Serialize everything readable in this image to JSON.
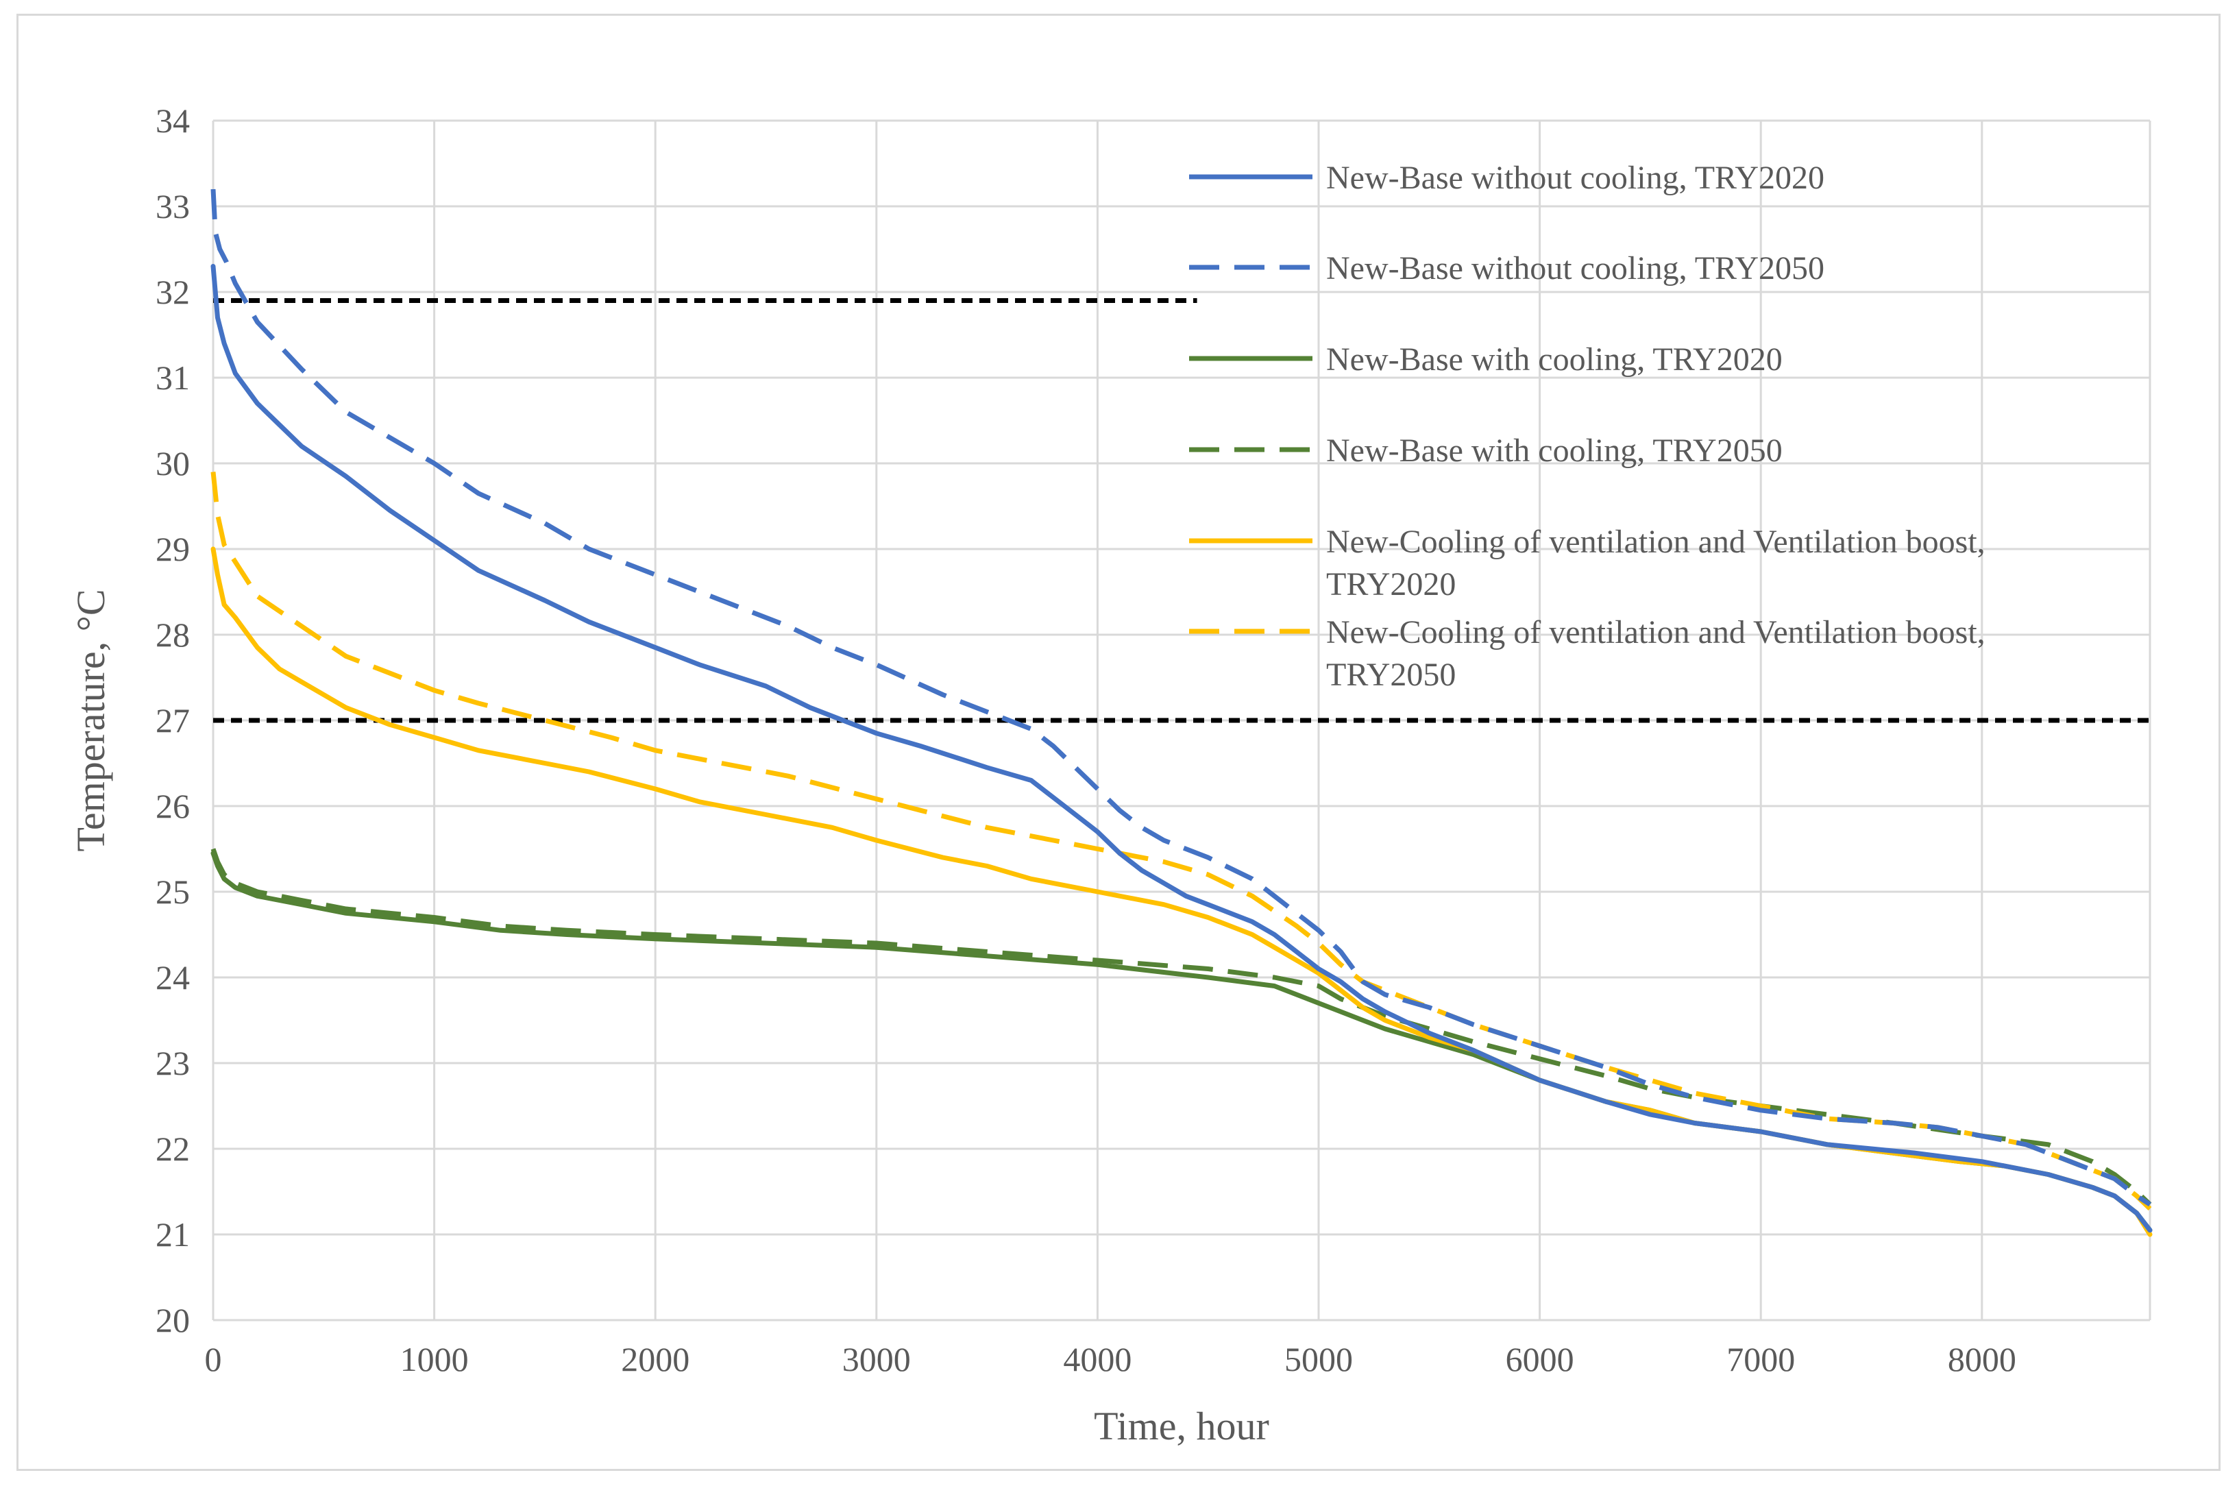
{
  "chart_data": {
    "type": "line",
    "title": "",
    "xlabel": "Time, hour",
    "ylabel": "Temperature, °C",
    "xlim": [
      0,
      8760
    ],
    "ylim": [
      20,
      34
    ],
    "xticks": [
      0,
      1000,
      2000,
      3000,
      4000,
      5000,
      6000,
      7000,
      8000
    ],
    "yticks": [
      20,
      21,
      22,
      23,
      24,
      25,
      26,
      27,
      28,
      29,
      30,
      31,
      32,
      33,
      34
    ],
    "grid": true,
    "legend_position": "top-right",
    "reference_lines": [
      {
        "name": "threshold-32",
        "y": 31.9,
        "x_start": 0,
        "x_end": 4450,
        "style": "dashed",
        "color": "#000000"
      },
      {
        "name": "threshold-27",
        "y": 27.0,
        "x_start": 0,
        "x_end": 8760,
        "style": "dashed",
        "color": "#000000"
      }
    ],
    "series": [
      {
        "name": "New-Base without cooling, TRY2020",
        "legend_lines": [
          "New-Base without cooling, TRY2020"
        ],
        "color": "#4472C4",
        "dash": "solid",
        "x": [
          0,
          20,
          50,
          100,
          200,
          300,
          400,
          600,
          800,
          1000,
          1200,
          1500,
          1700,
          2000,
          2200,
          2500,
          2700,
          2900,
          3000,
          3200,
          3500,
          3700,
          3800,
          3900,
          4000,
          4100,
          4200,
          4300,
          4400,
          4500,
          4700,
          4800,
          4900,
          5000,
          5100,
          5200,
          5300,
          5500,
          5700,
          6000,
          6300,
          6500,
          6700,
          7000,
          7300,
          7500,
          7700,
          8000,
          8300,
          8500,
          8600,
          8700,
          8760
        ],
        "y": [
          32.3,
          31.7,
          31.4,
          31.05,
          30.7,
          30.45,
          30.2,
          29.85,
          29.45,
          29.1,
          28.75,
          28.4,
          28.15,
          27.85,
          27.65,
          27.4,
          27.15,
          26.95,
          26.85,
          26.7,
          26.45,
          26.3,
          26.1,
          25.9,
          25.7,
          25.45,
          25.25,
          25.1,
          24.95,
          24.85,
          24.65,
          24.5,
          24.3,
          24.1,
          23.95,
          23.75,
          23.6,
          23.35,
          23.15,
          22.8,
          22.55,
          22.4,
          22.3,
          22.2,
          22.05,
          22.0,
          21.95,
          21.85,
          21.7,
          21.55,
          21.45,
          21.25,
          21.05
        ]
      },
      {
        "name": "New-Base without cooling, TRY2050",
        "legend_lines": [
          "New-Base without cooling, TRY2050"
        ],
        "color": "#4472C4",
        "dash": "dashed",
        "x": [
          0,
          10,
          30,
          60,
          100,
          200,
          400,
          600,
          800,
          1000,
          1200,
          1500,
          1700,
          2000,
          2300,
          2600,
          2800,
          3000,
          3300,
          3500,
          3700,
          3800,
          3900,
          4000,
          4100,
          4200,
          4300,
          4500,
          4700,
          4800,
          5000,
          5100,
          5200,
          5300,
          5500,
          5700,
          6000,
          6300,
          6500,
          6700,
          7000,
          7300,
          7600,
          7800,
          8000,
          8200,
          8400,
          8600,
          8700,
          8760
        ],
        "y": [
          33.2,
          32.7,
          32.5,
          32.35,
          32.1,
          31.65,
          31.1,
          30.6,
          30.3,
          30.0,
          29.65,
          29.3,
          29.0,
          28.7,
          28.4,
          28.1,
          27.85,
          27.65,
          27.3,
          27.1,
          26.9,
          26.7,
          26.45,
          26.2,
          25.95,
          25.75,
          25.6,
          25.4,
          25.15,
          24.95,
          24.55,
          24.3,
          23.95,
          23.8,
          23.65,
          23.45,
          23.2,
          22.95,
          22.75,
          22.6,
          22.45,
          22.35,
          22.3,
          22.25,
          22.15,
          22.05,
          21.85,
          21.65,
          21.45,
          21.35
        ]
      },
      {
        "name": "New-Base with cooling, TRY2020",
        "legend_lines": [
          "New-Base with cooling, TRY2020"
        ],
        "color": "#548235",
        "dash": "solid",
        "x": [
          0,
          20,
          50,
          100,
          200,
          400,
          600,
          800,
          1000,
          1300,
          1600,
          2000,
          2500,
          3000,
          3500,
          4000,
          4500,
          4800,
          4900,
          5000,
          5100,
          5200,
          5300,
          5500,
          5700,
          6000,
          6300,
          6500,
          6700,
          7000,
          7300,
          7600,
          7900,
          8100,
          8300,
          8500,
          8600,
          8700,
          8760
        ],
        "y": [
          25.45,
          25.3,
          25.15,
          25.05,
          24.95,
          24.85,
          24.75,
          24.7,
          24.65,
          24.55,
          24.5,
          24.45,
          24.4,
          24.35,
          24.25,
          24.15,
          24.0,
          23.9,
          23.8,
          23.7,
          23.6,
          23.5,
          23.4,
          23.25,
          23.1,
          22.8,
          22.55,
          22.45,
          22.3,
          22.2,
          22.05,
          21.95,
          21.85,
          21.8,
          21.7,
          21.55,
          21.45,
          21.25,
          21.05
        ]
      },
      {
        "name": "New-Base with cooling, TRY2050",
        "legend_lines": [
          "New-Base with cooling, TRY2050"
        ],
        "color": "#548235",
        "dash": "dashed",
        "x": [
          0,
          20,
          50,
          100,
          200,
          400,
          600,
          800,
          1000,
          1300,
          1600,
          2000,
          2500,
          3000,
          3500,
          4000,
          4500,
          4800,
          5000,
          5100,
          5200,
          5300,
          5500,
          5700,
          6000,
          6300,
          6500,
          6700,
          7000,
          7300,
          7600,
          8000,
          8300,
          8500,
          8600,
          8700,
          8760
        ],
        "y": [
          25.5,
          25.35,
          25.2,
          25.1,
          25.0,
          24.9,
          24.8,
          24.75,
          24.7,
          24.6,
          24.55,
          24.5,
          24.45,
          24.4,
          24.3,
          24.2,
          24.1,
          24.0,
          23.9,
          23.75,
          23.65,
          23.55,
          23.4,
          23.25,
          23.05,
          22.85,
          22.7,
          22.6,
          22.5,
          22.4,
          22.3,
          22.15,
          22.05,
          21.85,
          21.7,
          21.5,
          21.35
        ]
      },
      {
        "name": "New-Cooling of ventilation and Ventilation boost, TRY2020",
        "legend_lines": [
          "New-Cooling of ventilation and Ventilation boost,",
          "TRY2020"
        ],
        "color": "#FFC000",
        "dash": "solid",
        "x": [
          0,
          20,
          50,
          100,
          200,
          300,
          400,
          600,
          800,
          1000,
          1200,
          1500,
          1700,
          2000,
          2200,
          2500,
          2800,
          3000,
          3300,
          3500,
          3700,
          4000,
          4300,
          4500,
          4700,
          4800,
          4900,
          5000,
          5100,
          5200,
          5300,
          5500,
          5700,
          6000,
          6300,
          6500,
          6700,
          7000,
          7300,
          7600,
          7900,
          8100,
          8300,
          8500,
          8600,
          8700,
          8760
        ],
        "y": [
          29.0,
          28.7,
          28.35,
          28.2,
          27.85,
          27.6,
          27.45,
          27.15,
          26.95,
          26.8,
          26.65,
          26.5,
          26.4,
          26.2,
          26.05,
          25.9,
          25.75,
          25.6,
          25.4,
          25.3,
          25.15,
          25.0,
          24.85,
          24.7,
          24.5,
          24.35,
          24.2,
          24.05,
          23.85,
          23.65,
          23.5,
          23.3,
          23.15,
          22.8,
          22.55,
          22.45,
          22.3,
          22.2,
          22.05,
          21.95,
          21.85,
          21.8,
          21.7,
          21.55,
          21.45,
          21.25,
          21.0
        ]
      },
      {
        "name": "New-Cooling of ventilation and Ventilation boost, TRY2050",
        "legend_lines": [
          "New-Cooling of ventilation and Ventilation boost,",
          "TRY2050"
        ],
        "color": "#FFC000",
        "dash": "dashed",
        "x": [
          0,
          20,
          50,
          100,
          200,
          400,
          600,
          800,
          1000,
          1200,
          1500,
          1800,
          2000,
          2300,
          2600,
          2900,
          3200,
          3500,
          3800,
          4000,
          4300,
          4500,
          4700,
          4900,
          5000,
          5100,
          5200,
          5300,
          5500,
          5700,
          6000,
          6300,
          6500,
          6700,
          7000,
          7300,
          7600,
          7800,
          8000,
          8200,
          8400,
          8600,
          8700,
          8760
        ],
        "y": [
          29.9,
          29.4,
          29.05,
          28.85,
          28.45,
          28.1,
          27.75,
          27.55,
          27.35,
          27.2,
          27.0,
          26.8,
          26.65,
          26.5,
          26.35,
          26.15,
          25.95,
          25.75,
          25.6,
          25.5,
          25.35,
          25.2,
          24.95,
          24.6,
          24.4,
          24.15,
          23.95,
          23.85,
          23.65,
          23.45,
          23.2,
          22.95,
          22.8,
          22.65,
          22.5,
          22.35,
          22.3,
          22.25,
          22.15,
          22.05,
          21.85,
          21.65,
          21.45,
          21.3
        ]
      }
    ]
  }
}
